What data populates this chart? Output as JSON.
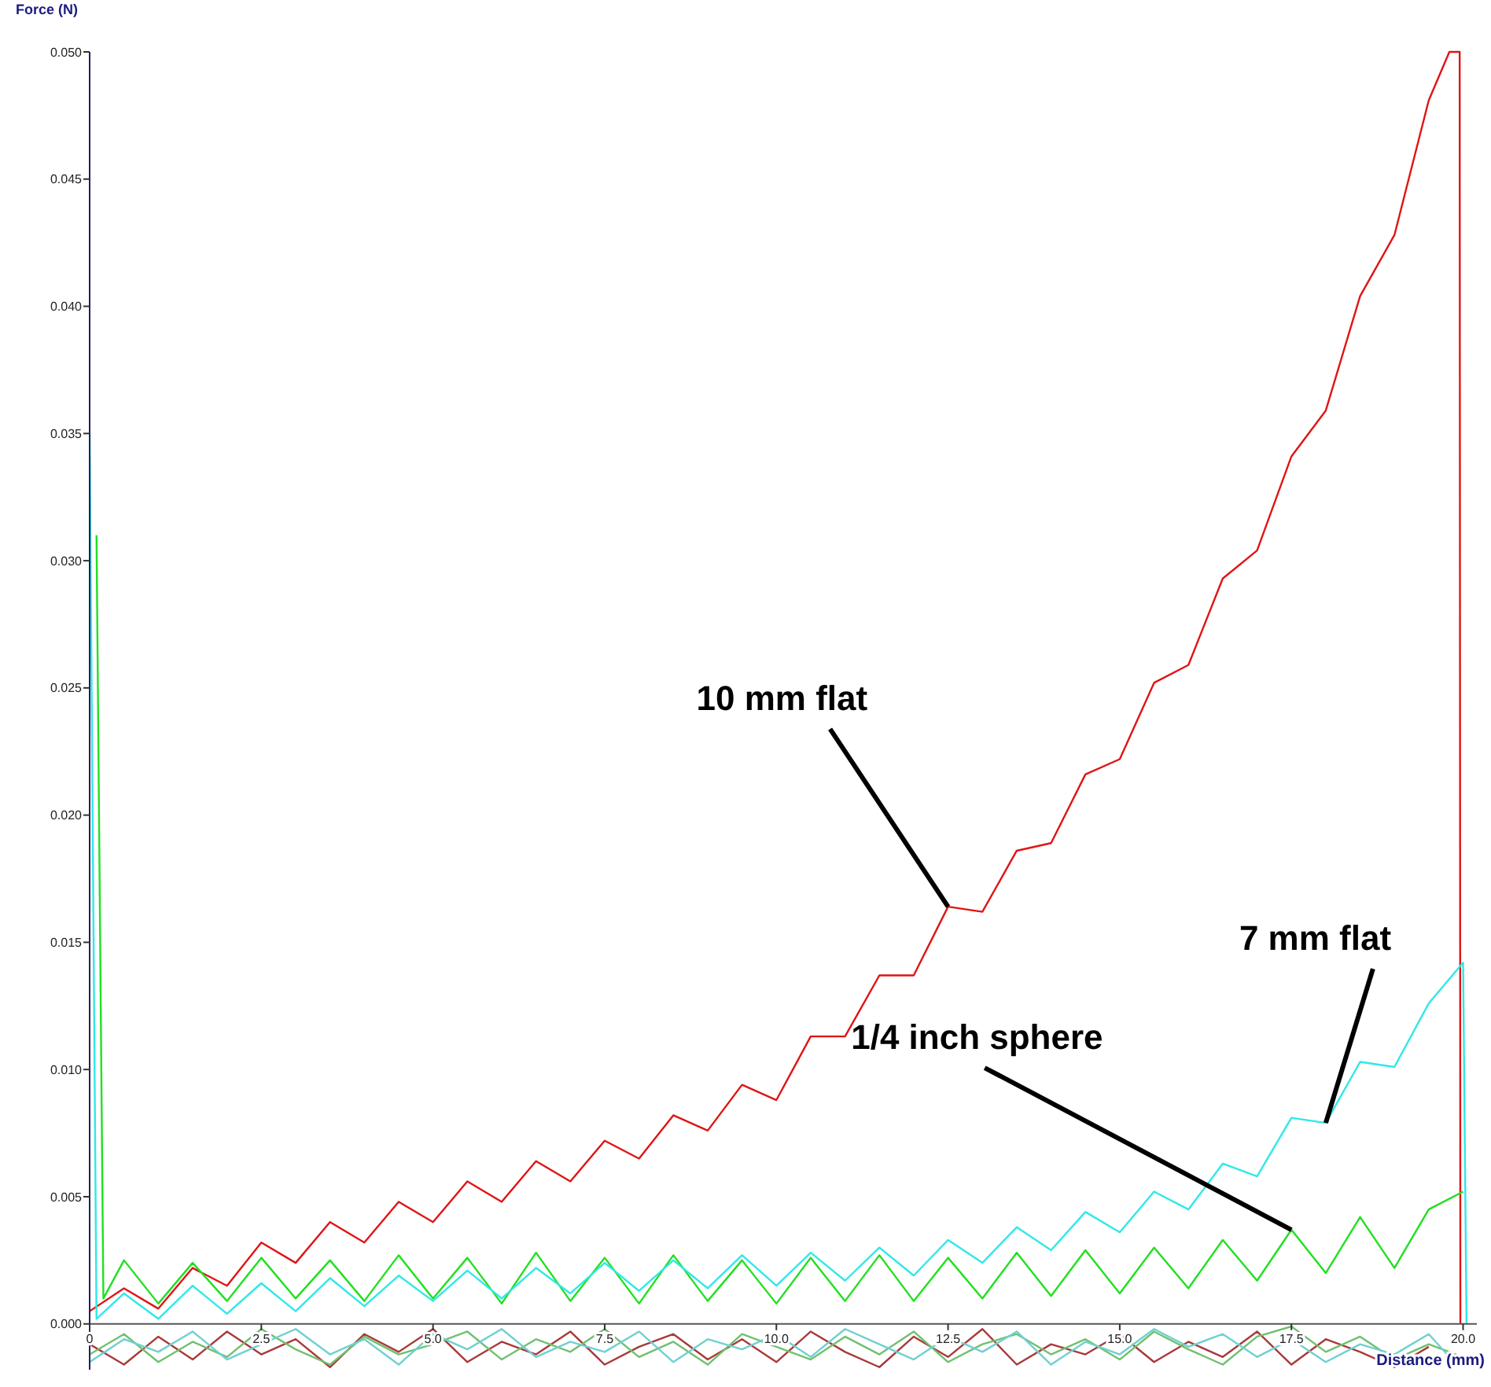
{
  "chart_data": {
    "type": "line",
    "xlabel": "Distance (mm)",
    "ylabel": "Force (N)",
    "xlim": [
      0,
      20.2
    ],
    "ylim": [
      -0.0018,
      0.05
    ],
    "xticks": [
      0,
      {
        "value": 2.5,
        "label": "2.5"
      },
      {
        "value": 5,
        "label": "5.0"
      },
      {
        "value": 7.5,
        "label": "7.5"
      },
      {
        "value": 10,
        "label": "10.0"
      },
      {
        "value": 12.5,
        "label": "12.5"
      },
      {
        "value": 15,
        "label": "15.0"
      },
      {
        "value": 17.5,
        "label": "17.5"
      },
      {
        "value": 20,
        "label": "20.0"
      }
    ],
    "yticks": [
      {
        "value": 0,
        "label": "0.000"
      },
      {
        "value": 0.005,
        "label": "0.005"
      },
      {
        "value": 0.01,
        "label": "0.010"
      },
      {
        "value": 0.015,
        "label": "0.015"
      },
      {
        "value": 0.02,
        "label": "0.020"
      },
      {
        "value": 0.025,
        "label": "0.025"
      },
      {
        "value": 0.03,
        "label": "0.030"
      },
      {
        "value": 0.035,
        "label": "0.035"
      },
      {
        "value": 0.04,
        "label": "0.040"
      },
      {
        "value": 0.045,
        "label": "0.045"
      },
      {
        "value": 0.05,
        "label": "0.050"
      }
    ],
    "grid": false,
    "line_style": "solid",
    "series": [
      {
        "color": "#a83a3a",
        "x": [
          0,
          0.5,
          1,
          1.5,
          2,
          2.5,
          3,
          3.5,
          4,
          4.5,
          5,
          5.5,
          6,
          6.5,
          7,
          7.5,
          8,
          8.5,
          9,
          9.5,
          10,
          10.5,
          11,
          11.5,
          12,
          12.5,
          13,
          13.5,
          14,
          14.5,
          15,
          15.5,
          16,
          16.5,
          17,
          17.5,
          18,
          18.5,
          19,
          19.5
        ],
        "values": [
          -0.0008,
          -0.0016,
          -0.0005,
          -0.0014,
          -0.0003,
          -0.0012,
          -0.0006,
          -0.0017,
          -0.0004,
          -0.0011,
          -0.0002,
          -0.0015,
          -0.0007,
          -0.0012,
          -0.0003,
          -0.0016,
          -0.0009,
          -0.0004,
          -0.0014,
          -0.0006,
          -0.0015,
          -0.0003,
          -0.0011,
          -0.0017,
          -0.0005,
          -0.0013,
          -0.0002,
          -0.0016,
          -0.0008,
          -0.0012,
          -0.0004,
          -0.0015,
          -0.0007,
          -0.0013,
          -0.0003,
          -0.0016,
          -0.0006,
          -0.0011,
          -0.0017,
          -0.0009
        ]
      },
      {
        "color": "#70c070",
        "x": [
          0,
          0.5,
          1,
          1.5,
          2,
          2.5,
          3,
          3.5,
          4,
          4.5,
          5,
          5.5,
          6,
          6.5,
          7,
          7.5,
          8,
          8.5,
          9,
          9.5,
          10,
          10.5,
          11,
          11.5,
          12,
          12.5,
          13,
          13.5,
          14,
          14.5,
          15,
          15.5,
          16,
          16.5,
          17,
          17.5,
          18,
          18.5,
          19,
          19.5,
          19.9
        ],
        "values": [
          -0.0012,
          -0.0004,
          -0.0015,
          -0.0007,
          -0.0013,
          -0.0002,
          -0.001,
          -0.0016,
          -0.0005,
          -0.0012,
          -0.0008,
          -0.0003,
          -0.0014,
          -0.0006,
          -0.0011,
          -0.0002,
          -0.0013,
          -0.0007,
          -0.0016,
          -0.0004,
          -0.0009,
          -0.0014,
          -0.0005,
          -0.0012,
          -0.0003,
          -0.0015,
          -0.0008,
          -0.0004,
          -0.0012,
          -0.0006,
          -0.0014,
          -0.0003,
          -0.001,
          -0.0016,
          -0.0005,
          -0.0001,
          -0.0011,
          -0.0005,
          -0.0014,
          -0.0008,
          -0.0012
        ]
      },
      {
        "color": "#70d0d0",
        "x": [
          0,
          0.5,
          1,
          1.5,
          2,
          2.5,
          3,
          3.5,
          4,
          4.5,
          5,
          5.5,
          6,
          6.5,
          7,
          7.5,
          8,
          8.5,
          9,
          9.5,
          10,
          10.5,
          11,
          11.5,
          12,
          12.5,
          13,
          13.5,
          14,
          14.5,
          15,
          15.5,
          16,
          16.5,
          17,
          17.5,
          18,
          18.5,
          19,
          19.5,
          19.9
        ],
        "values": [
          -0.0015,
          -0.0006,
          -0.0011,
          -0.0003,
          -0.0014,
          -0.0008,
          -0.0002,
          -0.0012,
          -0.0006,
          -0.0016,
          -0.0004,
          -0.001,
          -0.0002,
          -0.0013,
          -0.0007,
          -0.0011,
          -0.0003,
          -0.0015,
          -0.0006,
          -0.001,
          -0.0004,
          -0.0013,
          -0.0002,
          -0.0008,
          -0.0014,
          -0.0005,
          -0.0011,
          -0.0003,
          -0.0016,
          -0.0007,
          -0.0012,
          -0.0002,
          -0.0009,
          -0.0004,
          -0.0013,
          -0.0006,
          -0.0015,
          -0.0008,
          -0.0012,
          -0.0004,
          -0.0016
        ]
      },
      {
        "color": "#e01414",
        "x": [
          0,
          0.5,
          1,
          1.5,
          2,
          2.5,
          3,
          3.5,
          4,
          4.5,
          5,
          5.5,
          6,
          6.5,
          7,
          7.5,
          8,
          8.5,
          9,
          9.5,
          10,
          10.5,
          11,
          11.5,
          12,
          12.5,
          13,
          13.5,
          14,
          14.5,
          15,
          15.5,
          16,
          16.5,
          17,
          17.5,
          18,
          18.5,
          19,
          19.5,
          19.8,
          19.95,
          19.96
        ],
        "values": [
          0.0005,
          0.0014,
          0.0006,
          0.0022,
          0.0015,
          0.0032,
          0.0024,
          0.004,
          0.0032,
          0.0048,
          0.004,
          0.0056,
          0.0048,
          0.0064,
          0.0056,
          0.0072,
          0.0065,
          0.0082,
          0.0076,
          0.0094,
          0.0088,
          0.0113,
          0.0113,
          0.0137,
          0.0137,
          0.0164,
          0.0162,
          0.0186,
          0.0189,
          0.0216,
          0.0222,
          0.0252,
          0.0259,
          0.0293,
          0.0304,
          0.0341,
          0.0359,
          0.0404,
          0.0428,
          0.0481,
          0.05,
          0.05,
          0
        ]
      },
      {
        "color": "#20e020",
        "x": [
          0.1,
          0.2,
          0.5,
          1,
          1.5,
          2,
          2.5,
          3,
          3.5,
          4,
          4.5,
          5,
          5.5,
          6,
          6.5,
          7,
          7.5,
          8,
          8.5,
          9,
          9.5,
          10,
          10.5,
          11,
          11.5,
          12,
          12.5,
          13,
          13.5,
          14,
          14.5,
          15,
          15.5,
          16,
          16.5,
          17,
          17.5,
          18,
          18.5,
          19,
          19.5,
          20
        ],
        "values": [
          0.031,
          0.001,
          0.0025,
          0.0008,
          0.0024,
          0.0009,
          0.0026,
          0.001,
          0.0025,
          0.0009,
          0.0027,
          0.001,
          0.0026,
          0.0008,
          0.0028,
          0.0009,
          0.0026,
          0.0008,
          0.0027,
          0.0009,
          0.0025,
          0.0008,
          0.0026,
          0.0009,
          0.0027,
          0.0009,
          0.0026,
          0.001,
          0.0028,
          0.0011,
          0.0029,
          0.0012,
          0.003,
          0.0014,
          0.0033,
          0.0017,
          0.0037,
          0.002,
          0.0042,
          0.0022,
          0.0045,
          0.0052
        ]
      },
      {
        "color": "#30e8e8",
        "x": [
          0,
          0.1,
          0.5,
          1,
          1.5,
          2,
          2.5,
          3,
          3.5,
          4,
          4.5,
          5,
          5.5,
          6,
          6.5,
          7,
          7.5,
          8,
          8.5,
          9,
          9.5,
          10,
          10.5,
          11,
          11.5,
          12,
          12.5,
          13,
          13.5,
          14,
          14.5,
          15,
          15.5,
          16,
          16.5,
          17,
          17.5,
          18,
          18.5,
          19,
          19.5,
          20,
          20.05
        ],
        "values": [
          0.035,
          0.0002,
          0.0012,
          0.0002,
          0.0015,
          0.0004,
          0.0016,
          0.0005,
          0.0018,
          0.0007,
          0.0019,
          0.0009,
          0.0021,
          0.001,
          0.0022,
          0.0012,
          0.0024,
          0.0013,
          0.0025,
          0.0014,
          0.0027,
          0.0015,
          0.0028,
          0.0017,
          0.003,
          0.0019,
          0.0033,
          0.0024,
          0.0038,
          0.0029,
          0.0044,
          0.0036,
          0.0052,
          0.0045,
          0.0063,
          0.0058,
          0.0081,
          0.0079,
          0.0103,
          0.0101,
          0.0126,
          0.0142,
          0
        ]
      }
    ],
    "annotations": [
      {
        "text": "10 mm flat",
        "x": 12.5,
        "y": 0.0164
      },
      {
        "text": "7 mm flat",
        "x": 18,
        "y": 0.0079
      },
      {
        "text": "1/4 inch sphere",
        "x": 17.5,
        "y": 0.0037
      }
    ]
  }
}
